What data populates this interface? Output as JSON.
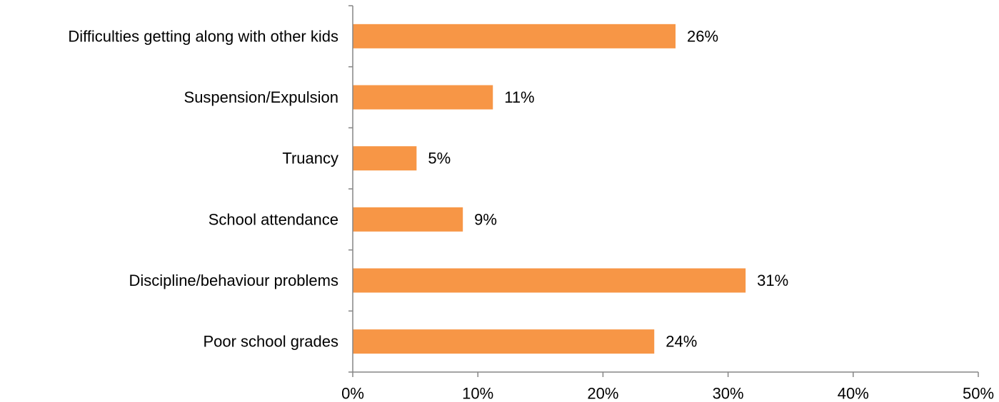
{
  "chart_data": {
    "type": "bar",
    "orientation": "horizontal",
    "categories": [
      "Difficulties getting along with other kids",
      "Suspension/Expulsion",
      "Truancy",
      "School attendance",
      "Discipline/behaviour problems",
      "Poor school grades"
    ],
    "values": [
      25.8,
      11.2,
      5.1,
      8.8,
      31.4,
      24.1
    ],
    "value_labels": [
      "26%",
      "11%",
      "5%",
      "9%",
      "31%",
      "24%"
    ],
    "xlim": [
      0,
      50
    ],
    "x_ticks": [
      0,
      10,
      20,
      30,
      40,
      50
    ],
    "x_tick_labels": [
      "0%",
      "10%",
      "20%",
      "30%",
      "40%",
      "50%"
    ],
    "title": "",
    "xlabel": "",
    "ylabel": "",
    "grid": false,
    "bar_color": "#F79646",
    "axis_color": "#868686"
  }
}
